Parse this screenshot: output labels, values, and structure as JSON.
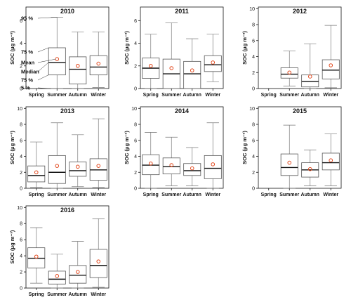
{
  "chart_data": [
    {
      "type": "box",
      "title": "2010",
      "ylabel": "SOC (μg m⁻³)",
      "ylim": [
        0,
        7.2
      ],
      "yticks": [
        0,
        2,
        4,
        6
      ],
      "categories": [
        "Spring",
        "Summer",
        "Autumn",
        "Winter"
      ],
      "boxes": [
        null,
        {
          "p5": 0.0,
          "p25": 1.2,
          "median": 2.3,
          "mean": 2.6,
          "p75": 3.6,
          "p95": 6.3
        },
        {
          "p5": 0.0,
          "p25": 0.4,
          "median": 1.7,
          "mean": 2.0,
          "p75": 2.8,
          "p95": 5.0
        },
        {
          "p5": 0.1,
          "p25": 1.2,
          "median": 1.9,
          "mean": 2.2,
          "p75": 2.9,
          "p95": 5.0
        }
      ],
      "legend": {
        "p95": "95 %",
        "p75": "75 %",
        "mean": "Mean",
        "median": "Median",
        "p25": "75 %",
        "p5": "5 %"
      }
    },
    {
      "type": "box",
      "title": "2011",
      "ylabel": "SOC (μg m⁻³)",
      "ylim": [
        0,
        7.2
      ],
      "yticks": [
        0,
        2,
        4,
        6
      ],
      "categories": [
        "Spring",
        "Summer",
        "Autumn",
        "Winter"
      ],
      "boxes": [
        {
          "p5": 0.0,
          "p25": 0.9,
          "median": 1.8,
          "mean": 2.0,
          "p75": 2.7,
          "p95": 4.8
        },
        {
          "p5": 0.0,
          "p25": 0.0,
          "median": 1.3,
          "mean": 1.8,
          "p75": 2.6,
          "p95": 5.8
        },
        {
          "p5": 0.0,
          "p25": 0.0,
          "median": 1.3,
          "mean": 1.6,
          "p75": 2.4,
          "p95": 4.4
        },
        {
          "p5": 0.6,
          "p25": 1.5,
          "median": 2.1,
          "mean": 2.3,
          "p75": 2.9,
          "p95": 4.8
        }
      ]
    },
    {
      "type": "box",
      "title": "2012",
      "ylabel": "SOC (μg m⁻³)",
      "ylim": [
        0,
        10.2
      ],
      "yticks": [
        0,
        2,
        4,
        6,
        8,
        10
      ],
      "categories": [
        "Spring",
        "Summer",
        "Autumn",
        "Winter"
      ],
      "boxes": [
        null,
        {
          "p5": 0.3,
          "p25": 1.3,
          "median": 1.8,
          "mean": 2.0,
          "p75": 2.6,
          "p95": 4.7
        },
        {
          "p5": 0.0,
          "p25": 0.2,
          "median": 0.9,
          "mean": 1.5,
          "p75": 1.7,
          "p95": 5.6
        },
        {
          "p5": 0.1,
          "p25": 1.2,
          "median": 2.3,
          "mean": 2.9,
          "p75": 3.6,
          "p95": 7.9
        }
      ]
    },
    {
      "type": "box",
      "title": "2013",
      "ylabel": "SOC (μg m⁻³)",
      "ylim": [
        0,
        10.2
      ],
      "yticks": [
        0,
        2,
        4,
        6,
        8,
        10
      ],
      "categories": [
        "Spring",
        "Summer",
        "Autumn",
        "Winter"
      ],
      "boxes": [
        {
          "p5": 0.1,
          "p25": 0.8,
          "median": 1.6,
          "mean": 2.0,
          "p75": 2.8,
          "p95": 5.8
        },
        {
          "p5": 0.0,
          "p25": 0.6,
          "median": 2.0,
          "mean": 2.8,
          "p75": 4.1,
          "p95": 8.2
        },
        {
          "p5": 0.2,
          "p25": 1.5,
          "median": 2.2,
          "mean": 2.7,
          "p75": 3.3,
          "p95": 6.7
        },
        {
          "p5": 0.1,
          "p25": 1.0,
          "median": 2.3,
          "mean": 2.8,
          "p75": 3.7,
          "p95": 8.7
        }
      ]
    },
    {
      "type": "box",
      "title": "2014",
      "ylabel": "SOC (μg m⁻³)",
      "ylim": [
        0,
        10.2
      ],
      "yticks": [
        0,
        2,
        4,
        6,
        8,
        10
      ],
      "categories": [
        "Spring",
        "Summer",
        "Autumn",
        "Winter"
      ],
      "boxes": [
        {
          "p5": 0.0,
          "p25": 1.7,
          "median": 2.9,
          "mean": 3.1,
          "p75": 4.2,
          "p95": 7.0
        },
        {
          "p5": 0.3,
          "p25": 1.8,
          "median": 2.7,
          "mean": 2.9,
          "p75": 3.8,
          "p95": 6.4
        },
        {
          "p5": 0.3,
          "p25": 1.6,
          "median": 2.2,
          "mean": 2.5,
          "p75": 3.1,
          "p95": 5.1
        },
        {
          "p5": 0.0,
          "p25": 1.2,
          "median": 2.5,
          "mean": 3.0,
          "p75": 4.1,
          "p95": 8.2
        }
      ]
    },
    {
      "type": "box",
      "title": "2015",
      "ylabel": "SOC (μg m⁻³)",
      "ylim": [
        0,
        10.2
      ],
      "yticks": [
        0,
        2,
        4,
        6,
        8,
        10
      ],
      "categories": [
        "Spring",
        "Summer",
        "Autumn",
        "Winter"
      ],
      "boxes": [
        null,
        {
          "p5": 0.0,
          "p25": 1.6,
          "median": 2.6,
          "mean": 3.2,
          "p75": 4.3,
          "p95": 7.9
        },
        {
          "p5": 0.3,
          "p25": 1.4,
          "median": 2.3,
          "mean": 2.4,
          "p75": 3.2,
          "p95": 4.8
        },
        {
          "p5": 0.3,
          "p25": 2.3,
          "median": 3.2,
          "mean": 3.5,
          "p75": 4.4,
          "p95": 6.8
        }
      ]
    },
    {
      "type": "box",
      "title": "2016",
      "ylabel": "SOC (μg m⁻³)",
      "ylim": [
        0,
        10.2
      ],
      "yticks": [
        0,
        2,
        4,
        6,
        8,
        10
      ],
      "categories": [
        "Spring",
        "Summer",
        "Autumn",
        "Winter"
      ],
      "boxes": [
        {
          "p5": 0.6,
          "p25": 2.5,
          "median": 3.7,
          "mean": 3.9,
          "p75": 5.0,
          "p95": 7.5
        },
        {
          "p5": 0.0,
          "p25": 0.5,
          "median": 1.1,
          "mean": 1.5,
          "p75": 2.1,
          "p95": 4.2
        },
        {
          "p5": 0.0,
          "p25": 0.6,
          "median": 1.6,
          "mean": 2.0,
          "p75": 2.8,
          "p95": 5.8
        },
        {
          "p5": 0.1,
          "p25": 1.3,
          "median": 2.8,
          "mean": 3.3,
          "p75": 4.8,
          "p95": 8.6
        }
      ]
    }
  ],
  "colors": {
    "box_stroke": "#555555",
    "median": "#111111",
    "mean_marker": "#e24a1f",
    "axis": "#111111"
  }
}
